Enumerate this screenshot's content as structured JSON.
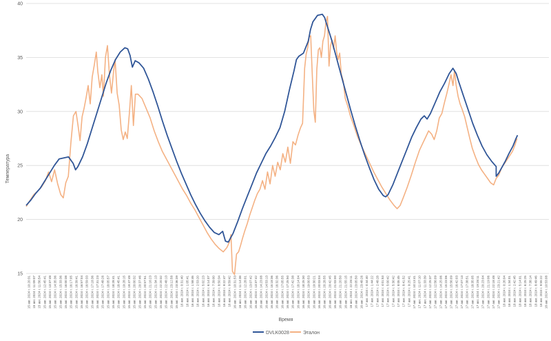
{
  "colors": {
    "series_blue": "#2f5597",
    "series_orange": "#f4b183",
    "grid": "#d9d9d9",
    "axis_text": "#595959"
  },
  "chart_data": {
    "type": "line",
    "xlabel": "Время",
    "ylabel": "Температура",
    "ylim": [
      15,
      40
    ],
    "yticks": [
      15,
      20,
      25,
      30,
      35,
      40
    ],
    "grid": true,
    "legend_position": "bottom",
    "categories": [
      "15 авг. 2024 г. 10:20:31",
      "15 авг. 2024 г. 11:09:07",
      "15 авг. 2024 г. 11:56:54",
      "15 авг. 2024 г. 12:45:41",
      "15 авг. 2024 г. 13:37:48",
      "15 авг. 2024 г. 14:35:36",
      "15 авг. 2024 г. 15:33:36",
      "15 авг. 2024 г. 16:00:38",
      "15 авг. 2024 г. 16:17:05",
      "15 авг. 2024 г. 16:39:41",
      "15 авг. 2024 г. 16:57:04",
      "15 авг. 2024 г. 16:59:33",
      "15 авг. 2024 г. 17:18:36",
      "15 авг. 2024 г. 17:31:23",
      "15 авг. 2024 г. 17:48:26",
      "15 авг. 2024 г. 18:05:57",
      "15 авг. 2024 г. 18:28:41",
      "15 авг. 2024 г. 18:45:41",
      "15 авг. 2024 г. 19:28:15",
      "15 авг. 2024 г. 19:47:48",
      "15 авг. 2024 г. 20:00:32",
      "15 авг. 2024 г. 20:37:46",
      "15 авг. 2024 г. 20:57:51",
      "15 авг. 2024 г. 21:16:23",
      "15 авг. 2024 г. 21:34:13",
      "15 авг. 2024 г. 22:20:32",
      "15 авг. 2024 г. 22:48:13",
      "15 авг. 2024 г. 23:12:58",
      "15 авг. 2024 г. 23:36:39",
      "16 авг. 2024 г. 0:31:40",
      "16 авг. 2024 г. 1:05:41",
      "16 авг. 2024 г. 1:58:46",
      "16 авг. 2024 г. 2:53:20",
      "16 авг. 2024 г. 5:02:23",
      "16 авг. 2024 г. 6:14:07",
      "16 авг. 2024 г. 7:39:00",
      "16 авг. 2024 г. 8:50:34",
      "16 авг. 2024 г. 9:22:47",
      "16 авг. 2024 г. 9:59:42",
      "16 авг. 2024 г. 10:31:53",
      "16 авг. 2024 г. 11:14:38",
      "16 авг. 2024 г. 12:28:01",
      "16 авг. 2024 г. 13:07:42",
      "16 авг. 2024 г. 13:37:42",
      "16 авг. 2024 г. 14:23:08",
      "16 авг. 2024 г. 14:53:13",
      "16 авг. 2024 г. 15:18:36",
      "16 авг. 2024 г. 16:32:36",
      "16 авг. 2024 г. 17:05:55",
      "16 авг. 2024 г. 17:25:50",
      "16 авг. 2024 г. 17:42:38",
      "16 авг. 2024 г. 18:14:04",
      "16 авг. 2024 г. 18:25:30",
      "16 авг. 2024 г. 19:00:53",
      "16 авг. 2024 г. 19:30:21",
      "16 авг. 2024 г. 20:03:04",
      "16 авг. 2024 г. 20:28:55",
      "16 авг. 2024 г. 20:42:45",
      "16 авг. 2024 г. 21:03:00",
      "16 авг. 2024 г. 21:20:50",
      "16 авг. 2024 г. 21:55:15",
      "16 авг. 2024 г. 22:28:11",
      "16 авг. 2024 г. 23:05:50",
      "16 авг. 2024 г. 23:48:26",
      "17 авг. 2024 г. 0:44:40",
      "17 авг. 2024 г. 1:44:22",
      "17 авг. 2024 г. 2:48:28",
      "17 авг. 2024 г. 4:01:53",
      "17 авг. 2024 г. 5:00:42",
      "17 авг. 2024 г. 5:30:42",
      "17 авг. 2024 г. 8:05:45",
      "17 авг. 2024 г. 8:41:52",
      "17 авг. 2024 г. 9:25:41",
      "17 авг. 2024 г. 10:13:41",
      "17 авг. 2024 г. 11:07:10",
      "17 авг. 2024 г. 11:33:39",
      "17 авг. 2024 г. 12:25:37",
      "17 авг. 2024 г. 12:56:09",
      "17 авг. 2024 г. 14:25:06",
      "17 авг. 2024 г. 15:23:06",
      "17 авг. 2024 г. 15:56:09",
      "17 авг. 2024 г. 16:42:03",
      "17 авг. 2024 г. 17:07:13",
      "17 авг. 2024 г. 17:38:51",
      "17 авг. 2024 г. 18:35:05",
      "17 авг. 2024 г. 19:28:11",
      "17 авг. 2024 г. 20:23:04",
      "17 авг. 2024 г. 21:19:06",
      "17 авг. 2024 г. 22:18:48",
      "17 авг. 2024 г. 23:21:42",
      "18 авг. 2024 г. 0:26:04",
      "18 авг. 2024 г. 1:34:01",
      "18 авг. 2024 г. 2:42:45",
      "18 авг. 2024 г. 5:14:01",
      "18 авг. 2024 г. 6:25:25",
      "18 авг. 2024 г. 7:38:14",
      "18 авг. 2024 г. 8:49:46",
      "18 авг. 2024 г. 9:55:22",
      "18 авг. 2024 г. 10:53:08"
    ],
    "series": [
      {
        "name": "DVLK0028",
        "x": [
          0,
          2,
          4,
          6,
          8,
          9,
          10,
          11,
          12,
          13,
          14,
          15,
          16,
          17,
          18,
          19,
          20,
          21,
          22,
          23,
          24,
          25,
          26,
          27,
          28,
          30,
          32,
          34,
          36,
          38,
          40,
          42,
          44,
          46,
          48,
          50,
          52,
          54,
          56,
          58,
          60,
          62,
          64,
          66,
          68,
          70,
          72,
          74,
          76,
          78,
          80,
          82,
          84,
          86,
          88,
          90,
          92,
          94,
          96,
          98,
          100
        ],
        "values": [
          21.3,
          22.2,
          23.0,
          24.0,
          24.9,
          25.6,
          25.8,
          25.8,
          25.2,
          24.6,
          24.9,
          25.7,
          26.8,
          28.0,
          29.4,
          30.9,
          32.2,
          33.4,
          34.4,
          35.2,
          35.7,
          35.9,
          35.8,
          35.2,
          34.2,
          34.6,
          34.3,
          33.5,
          32.5,
          31.4,
          30.1,
          28.8,
          27.4,
          26.1,
          24.8,
          23.6,
          22.5,
          21.5,
          20.7,
          20.0,
          19.4,
          18.9,
          18.6,
          18.6,
          18.9,
          18.0,
          18.0,
          18.7,
          19.6,
          20.6,
          21.7,
          22.9,
          24.0,
          25.0,
          25.9,
          26.5,
          27.0,
          27.4,
          27.7,
          28.2,
          29.2
        ],
        "values_continued": "see path",
        "color": "#2f5597"
      },
      {
        "name": "Эталон",
        "color": "#f4b183"
      }
    ],
    "legend": [
      "DVLK0028",
      "Эталон"
    ]
  }
}
